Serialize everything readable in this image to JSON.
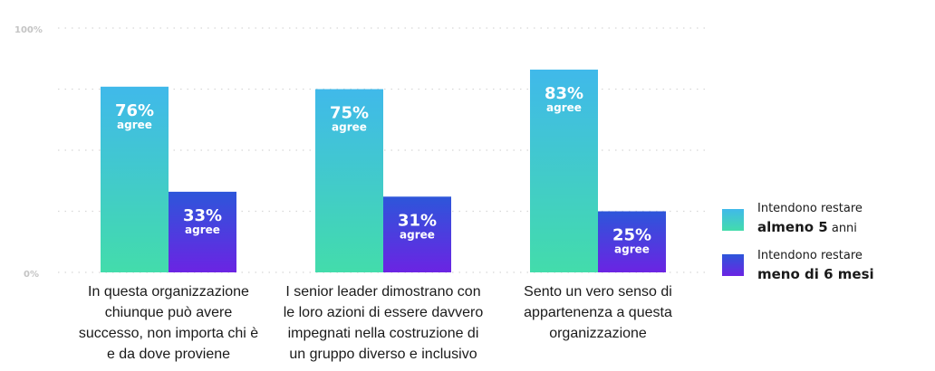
{
  "chart_data": {
    "type": "bar",
    "y_ticks": [
      "100%",
      "0%"
    ],
    "ylim": [
      0,
      100
    ],
    "grid": true,
    "grid_style": "dotted",
    "legend_position": "right",
    "categories": [
      [
        "In questa organizzazione",
        "chiunque può avere",
        "successo, non importa chi è",
        "e da dove proviene"
      ],
      [
        "I senior leader dimostrano con",
        "le loro azioni di essere davvero",
        "impegnati nella costruzione di",
        "un gruppo diverso e inclusivo"
      ],
      [
        "Sento un vero senso di",
        "appartenenza a questa",
        "organizzazione"
      ]
    ],
    "series": [
      {
        "name_line1": "Intendono restare",
        "name_bold": "almeno 5",
        "name_suffix": " anni",
        "values": [
          76,
          75,
          83
        ],
        "value_labels": [
          "76%",
          "75%",
          "83%"
        ],
        "color_top": "#40b9ea",
        "color_bottom": "#43dcab"
      },
      {
        "name_line1": "Intendono restare",
        "name_bold": "meno di 6 mesi",
        "name_suffix": "",
        "values": [
          33,
          31,
          25
        ],
        "value_labels": [
          "33%",
          "31%",
          "25%"
        ],
        "color_top": "#2d56da",
        "color_bottom": "#6b24e3"
      }
    ],
    "value_sublabel": "agree"
  }
}
